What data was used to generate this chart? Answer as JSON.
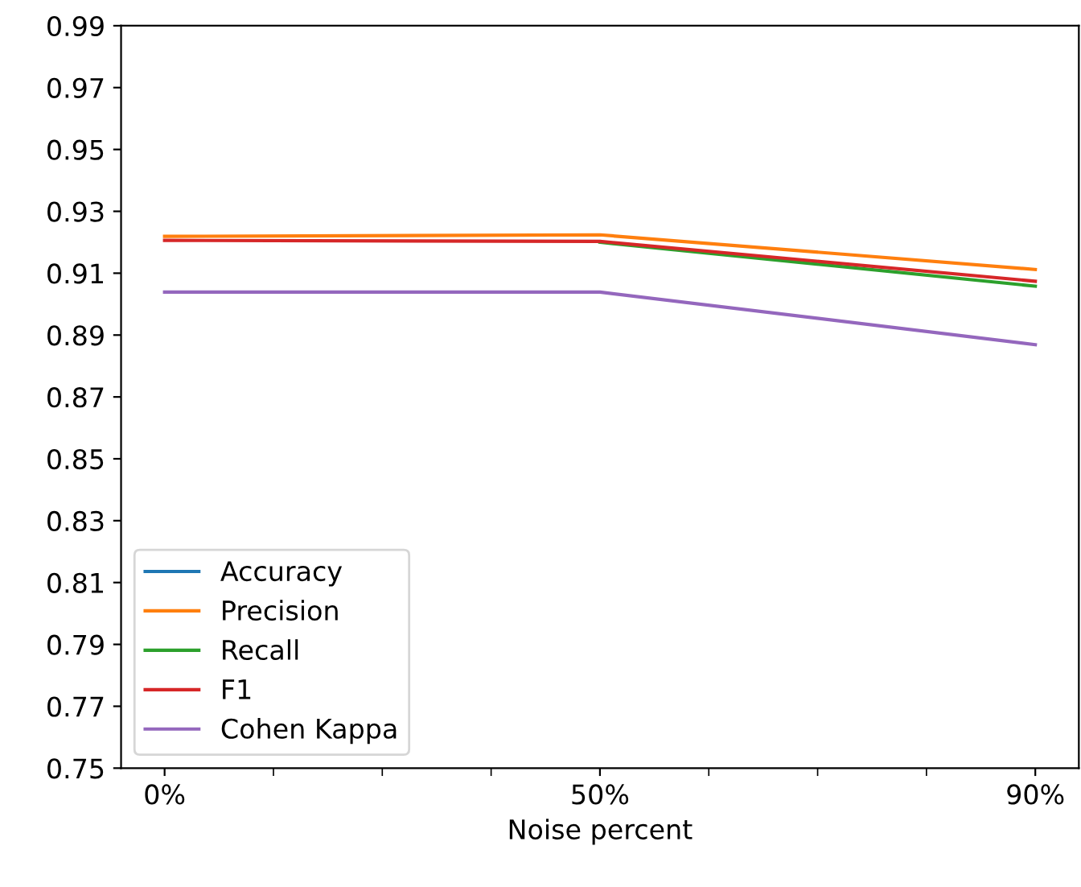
{
  "chart_data": {
    "type": "line",
    "xlabel": "Noise percent",
    "categories": [
      "0%",
      "50%",
      "90%"
    ],
    "series": [
      {
        "name": "Accuracy",
        "color": "#1f77b4",
        "values": [
          null,
          null,
          null
        ]
      },
      {
        "name": "Precision",
        "color": "#ff7f0e",
        "values": [
          0.9219,
          0.9224,
          0.9112
        ]
      },
      {
        "name": "Recall",
        "color": "#2ca02c",
        "values": [
          null,
          0.92,
          0.9058
        ]
      },
      {
        "name": "F1",
        "color": "#d62728",
        "values": [
          0.9206,
          0.9203,
          0.9074
        ]
      },
      {
        "name": "Cohen Kappa",
        "color": "#9467bd",
        "values": [
          0.9039,
          0.9039,
          0.8869
        ]
      }
    ],
    "ylim": [
      0.75,
      0.99
    ],
    "yticks": [
      0.75,
      0.77,
      0.79,
      0.81,
      0.83,
      0.85,
      0.87,
      0.89,
      0.91,
      0.93,
      0.95,
      0.97,
      0.99
    ],
    "legend": "lower left",
    "grid": false,
    "line_style": "solid",
    "marker": "none"
  }
}
